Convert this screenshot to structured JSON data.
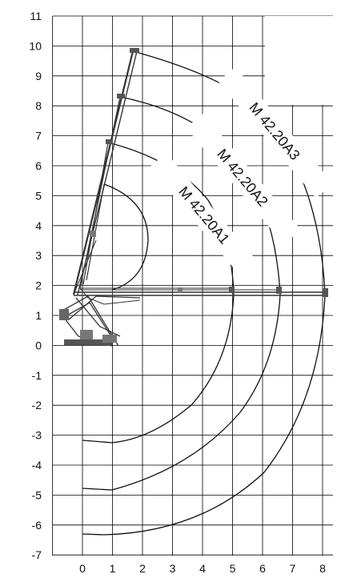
{
  "diagram": {
    "x_ticks": [
      "0",
      "1",
      "2",
      "3",
      "4",
      "5",
      "6",
      "7",
      "8"
    ],
    "y_ticks": [
      "11",
      "10",
      "9",
      "8",
      "7",
      "6",
      "5",
      "4",
      "3",
      "2",
      "1",
      "0",
      "-1",
      "-2",
      "-3",
      "-4",
      "-5",
      "-6",
      "-7"
    ],
    "curves": [
      {
        "label": "M 42.20A1",
        "reach_m": 5.0
      },
      {
        "label": "M 42.20A2",
        "reach_m": 6.6
      },
      {
        "label": "M 42.20A3",
        "reach_m": 8.1
      }
    ],
    "colors": {
      "grid": "#000000",
      "curve": "#111111",
      "boom": "#333333"
    }
  }
}
